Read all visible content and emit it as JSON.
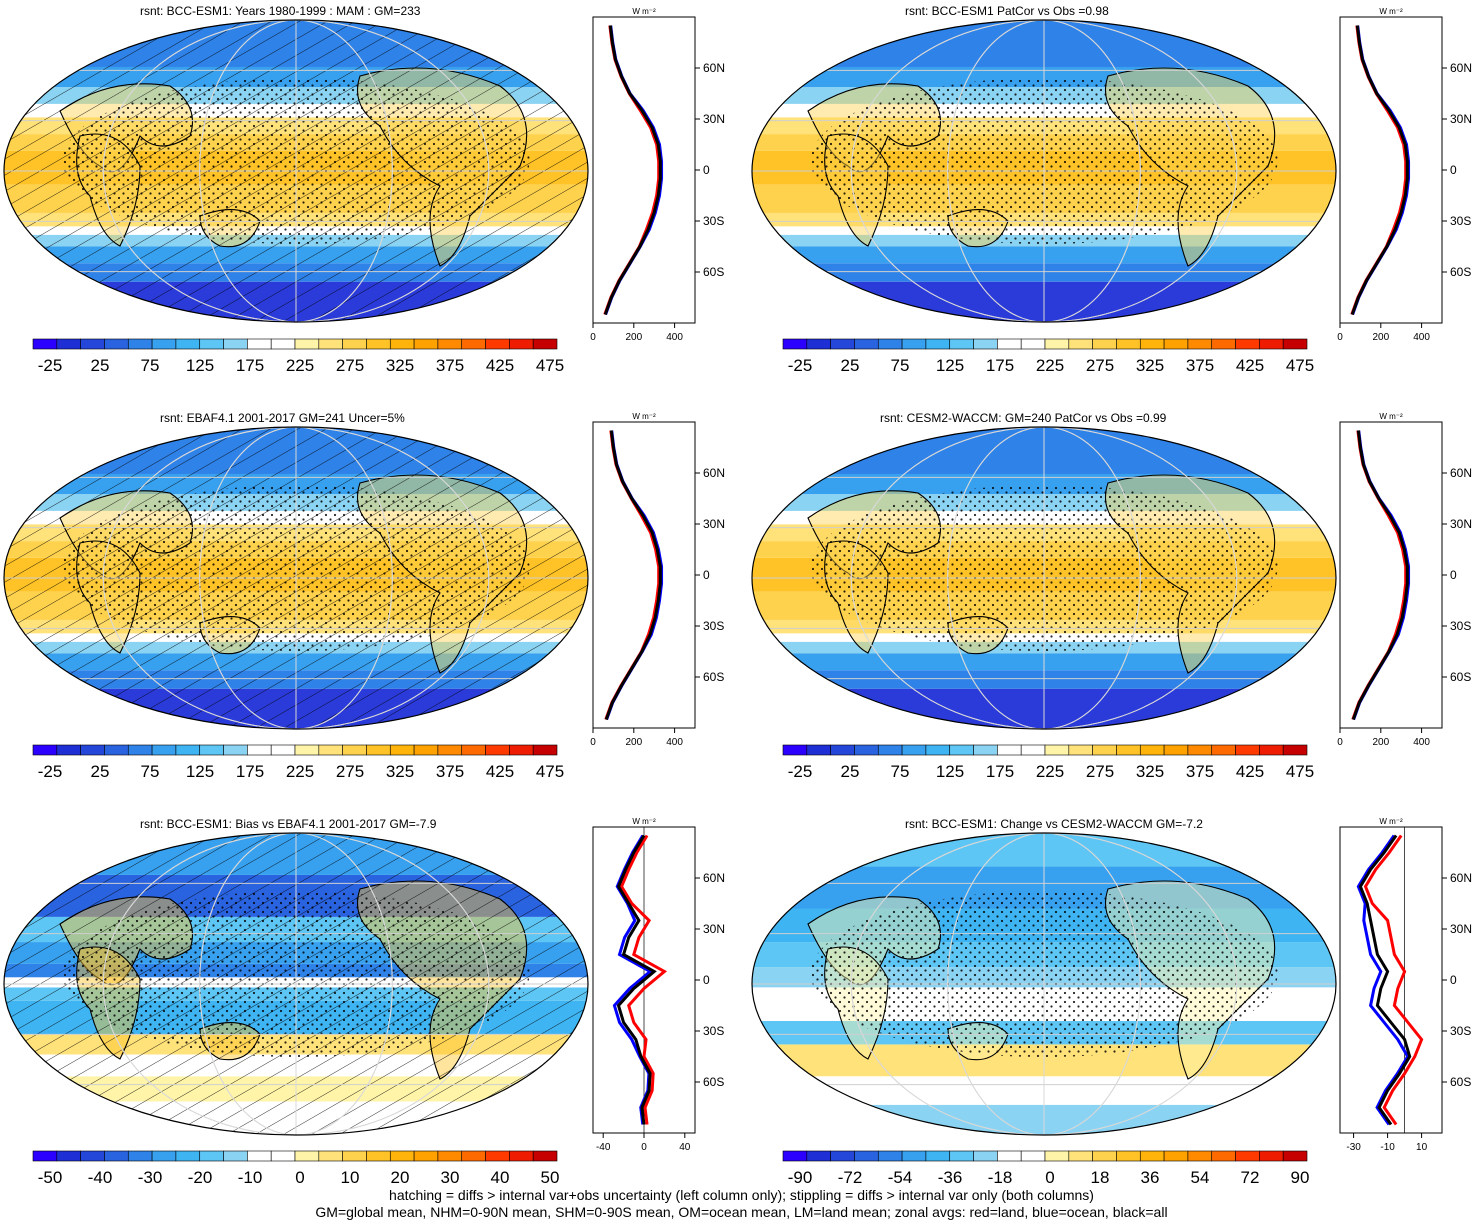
{
  "panels": [
    {
      "title": "rsnt: BCC-ESM1: Years 1980-1999 : MAM : GM=233",
      "kind": "mean",
      "hatch": true
    },
    {
      "title": "rsnt: BCC-ESM1 PatCor vs Obs =0.98",
      "kind": "mean",
      "hatch": false
    },
    {
      "title": "rsnt: EBAF4.1 2001-2017 GM=241 Uncer=5%",
      "kind": "mean",
      "hatch": true
    },
    {
      "title": "rsnt: CESM2-WACCM: GM=240 PatCor vs Obs =0.99",
      "kind": "mean",
      "hatch": false
    },
    {
      "title": "rsnt: BCC-ESM1: Bias vs EBAF4.1 2001-2017 GM=-7.9",
      "kind": "bias",
      "hatch": true
    },
    {
      "title": "rsnt: BCC-ESM1: Change vs CESM2-WACCM GM=-7.2",
      "kind": "change",
      "hatch": false
    }
  ],
  "colorbars": {
    "mean": {
      "labels": [
        "-25",
        "25",
        "75",
        "125",
        "175",
        "225",
        "275",
        "325",
        "375",
        "425",
        "475"
      ],
      "colors": [
        "#2b00ff",
        "#1f2fd6",
        "#2446d9",
        "#2a63e0",
        "#2f82e8",
        "#38a1ef",
        "#3fb4f2",
        "#5ec6f4",
        "#8bd3f2",
        "#ffffff",
        "#ffffff",
        "#fff4a8",
        "#ffe27a",
        "#ffd24d",
        "#ffc327",
        "#ffb40b",
        "#ffa200",
        "#ff8a00",
        "#ff6a00",
        "#ff3a00",
        "#ee1c00",
        "#c60000"
      ]
    },
    "bias": {
      "labels": [
        "-50",
        "-40",
        "-30",
        "-20",
        "-10",
        "0",
        "10",
        "20",
        "30",
        "40",
        "50"
      ],
      "colors": [
        "#2b00ff",
        "#1f2fd6",
        "#2446d9",
        "#2a63e0",
        "#2f82e8",
        "#38a1ef",
        "#3fb4f2",
        "#5ec6f4",
        "#8bd3f2",
        "#ffffff",
        "#ffffff",
        "#fff4a8",
        "#ffe27a",
        "#ffd24d",
        "#ffc327",
        "#ffb40b",
        "#ffa200",
        "#ff8a00",
        "#ff6a00",
        "#ff3a00",
        "#ee1c00",
        "#c60000"
      ]
    },
    "change": {
      "labels": [
        "-90",
        "-72",
        "-54",
        "-36",
        "-18",
        "0",
        "18",
        "36",
        "54",
        "72",
        "90"
      ],
      "colors": [
        "#2b00ff",
        "#1f2fd6",
        "#2446d9",
        "#2a63e0",
        "#2f82e8",
        "#38a1ef",
        "#3fb4f2",
        "#5ec6f4",
        "#8bd3f2",
        "#ffffff",
        "#ffffff",
        "#fff4a8",
        "#ffe27a",
        "#ffd24d",
        "#ffc327",
        "#ffb40b",
        "#ffa200",
        "#ff8a00",
        "#ff6a00",
        "#ff3a00",
        "#ee1c00",
        "#c60000"
      ]
    }
  },
  "zonal_plots": [
    {
      "unit": "W m⁻²",
      "xticks": [
        "0",
        "200",
        "400"
      ],
      "lat_labels": [
        "60N",
        "30N",
        "0",
        "30S",
        "60S"
      ],
      "xrange": [
        0,
        500
      ],
      "kind": "mean"
    },
    {
      "unit": "W m⁻²",
      "xticks": [
        "0",
        "200",
        "400"
      ],
      "lat_labels": [
        "60N",
        "30N",
        "0",
        "30S",
        "60S"
      ],
      "xrange": [
        0,
        500
      ],
      "kind": "mean"
    },
    {
      "unit": "W m⁻²",
      "xticks": [
        "0",
        "200",
        "400"
      ],
      "lat_labels": [
        "60N",
        "30N",
        "0",
        "30S",
        "60S"
      ],
      "xrange": [
        0,
        500
      ],
      "kind": "mean"
    },
    {
      "unit": "W m⁻²",
      "xticks": [
        "0",
        "200",
        "400"
      ],
      "lat_labels": [
        "60N",
        "30N",
        "0",
        "30S",
        "60S"
      ],
      "xrange": [
        0,
        500
      ],
      "kind": "mean"
    },
    {
      "unit": "W m⁻²",
      "xticks": [
        "-40",
        "0",
        "40"
      ],
      "lat_labels": [
        "60N",
        "30N",
        "0",
        "30S",
        "60S"
      ],
      "xrange": [
        -50,
        50
      ],
      "kind": "bias"
    },
    {
      "unit": "W m⁻²",
      "xticks": [
        "-30",
        "-10",
        "10"
      ],
      "lat_labels": [
        "60N",
        "30N",
        "0",
        "30S",
        "60S"
      ],
      "xrange": [
        -38,
        22
      ],
      "kind": "change"
    }
  ],
  "line_colors": {
    "land": "#ff0000",
    "ocean": "#0000ff",
    "all": "#000000"
  },
  "footer": {
    "line1": "hatching = diffs > internal var+obs uncertainty (left column only); stippling = diffs > internal var only (both columns)",
    "line2": "GM=global mean, NHM=0-90N mean, SHM=0-90S mean, OM=ocean mean, LM=land mean; zonal avgs: red=land, blue=ocean, black=all"
  },
  "chart_data": [
    {
      "type": "line",
      "title": "",
      "ylabel": "",
      "xlabel": "W m⁻²",
      "series": [],
      "lat": [
        -85,
        -75,
        -65,
        -55,
        -45,
        -35,
        -25,
        -15,
        -5,
        5,
        15,
        25,
        35,
        45,
        55,
        65,
        75,
        85
      ],
      "x": {
        "mean1": [
          60,
          90,
          130,
          180,
          230,
          270,
          300,
          320,
          330,
          330,
          320,
          290,
          240,
          180,
          140,
          110,
          95,
          85
        ],
        "mean3": [
          65,
          95,
          140,
          190,
          240,
          280,
          305,
          320,
          330,
          330,
          315,
          290,
          245,
          190,
          145,
          115,
          100,
          90
        ],
        "bias": [
          0,
          -2,
          5,
          6,
          -3,
          -8,
          -20,
          -25,
          -10,
          10,
          -20,
          -15,
          -5,
          -15,
          -25,
          -18,
          -10,
          0
        ],
        "change": [
          -8,
          -15,
          -10,
          -3,
          3,
          0,
          -8,
          -16,
          -14,
          -10,
          -16,
          -18,
          -20,
          -22,
          -26,
          -20,
          -12,
          -5
        ]
      }
    }
  ]
}
